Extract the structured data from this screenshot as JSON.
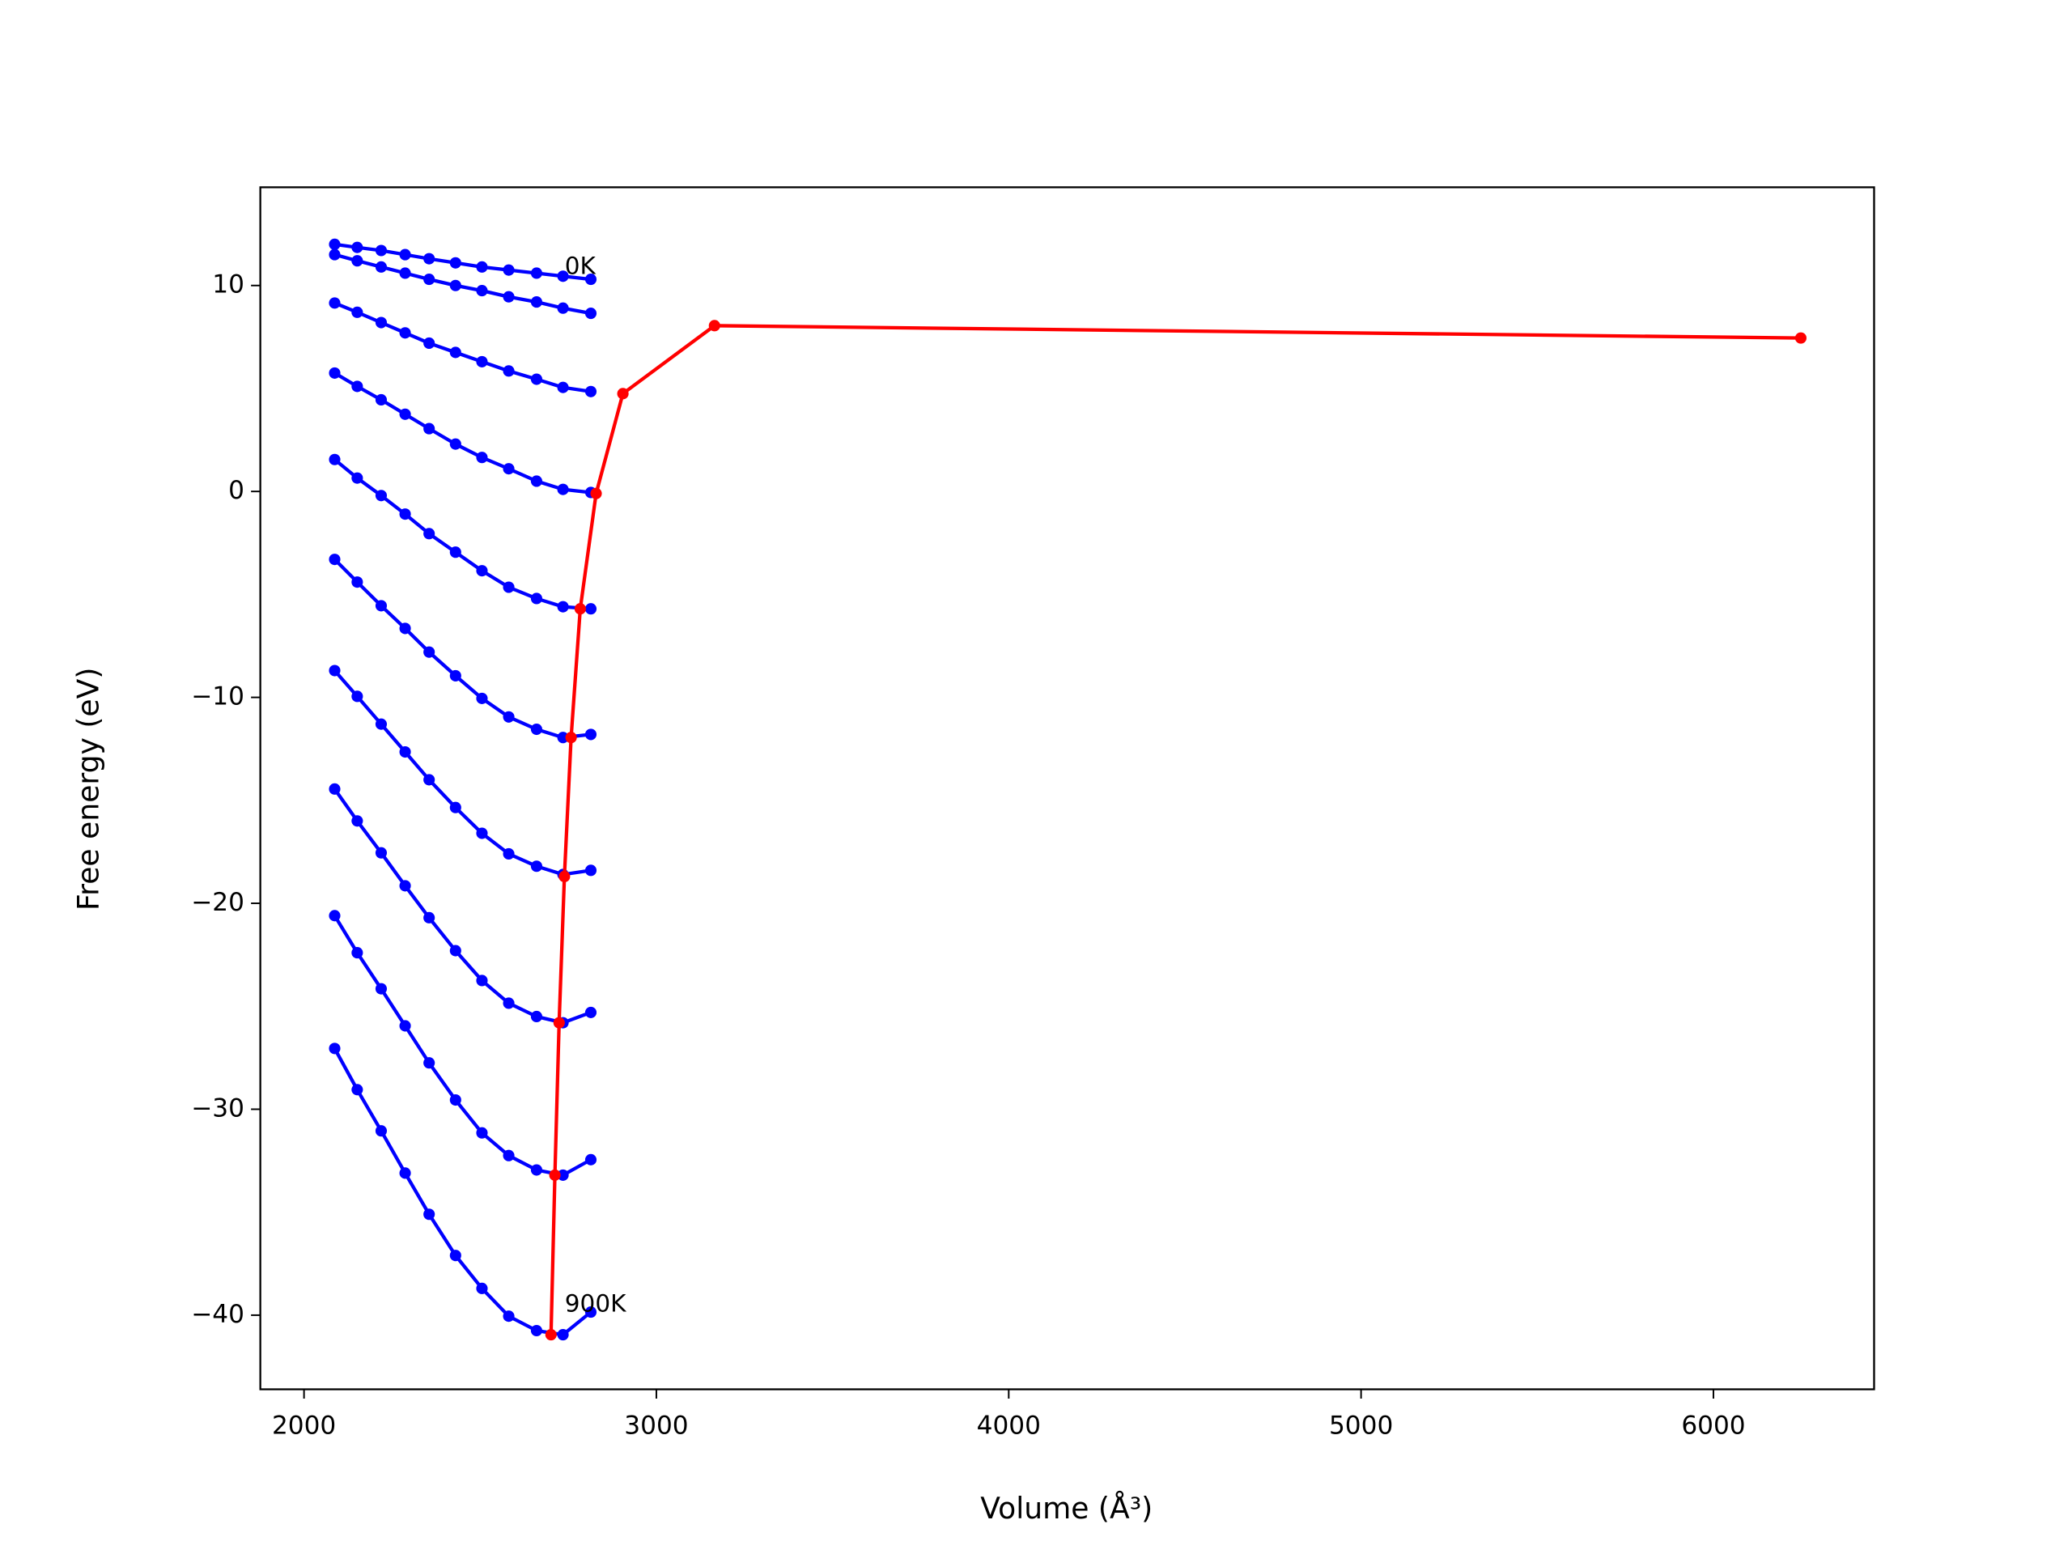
{
  "chart_data": {
    "type": "line",
    "xlabel": "Volume (Å³)",
    "ylabel": "Free energy (eV)",
    "xlim": [
      1876,
      6456
    ],
    "ylim": [
      -43.6,
      14.77
    ],
    "xticks": [
      2000,
      3000,
      4000,
      5000,
      6000
    ],
    "yticks": [
      {
        "value": -40,
        "label": "−40"
      },
      {
        "value": -30,
        "label": "−30"
      },
      {
        "value": -20,
        "label": "−20"
      },
      {
        "value": -10,
        "label": "−10"
      },
      0,
      10
    ],
    "annotations": [
      {
        "text": "0K",
        "x": 2740,
        "y": 10.9
      },
      {
        "text": "900K",
        "x": 2740,
        "y": -39.5
      }
    ],
    "series": [
      {
        "color": "#0000ff",
        "x": [
          2087,
          2151,
          2219,
          2287,
          2355,
          2430,
          2505,
          2581,
          2660,
          2735,
          2814
        ],
        "values": [
          12.0,
          11.85,
          11.7,
          11.5,
          11.3,
          11.1,
          10.9,
          10.75,
          10.6,
          10.45,
          10.3
        ]
      },
      {
        "color": "#0000ff",
        "x": [
          2087,
          2151,
          2219,
          2287,
          2355,
          2430,
          2505,
          2581,
          2660,
          2735,
          2814
        ],
        "values": [
          11.5,
          11.2,
          10.9,
          10.6,
          10.3,
          10.0,
          9.75,
          9.45,
          9.2,
          8.9,
          8.65
        ]
      },
      {
        "color": "#0000ff",
        "x": [
          2087,
          2151,
          2219,
          2287,
          2355,
          2430,
          2505,
          2581,
          2660,
          2735,
          2814
        ],
        "values": [
          9.15,
          8.7,
          8.2,
          7.7,
          7.2,
          6.75,
          6.3,
          5.85,
          5.45,
          5.05,
          4.85
        ]
      },
      {
        "color": "#0000ff",
        "x": [
          2087,
          2151,
          2219,
          2287,
          2355,
          2430,
          2505,
          2581,
          2660,
          2735,
          2814
        ],
        "values": [
          5.75,
          5.1,
          4.45,
          3.75,
          3.05,
          2.3,
          1.65,
          1.1,
          0.5,
          0.1,
          -0.05
        ]
      },
      {
        "color": "#0000ff",
        "x": [
          2087,
          2151,
          2219,
          2287,
          2355,
          2430,
          2505,
          2581,
          2660,
          2735,
          2814
        ],
        "values": [
          1.55,
          0.65,
          -0.2,
          -1.1,
          -2.05,
          -2.95,
          -3.85,
          -4.65,
          -5.2,
          -5.6,
          -5.7
        ]
      },
      {
        "color": "#0000ff",
        "x": [
          2087,
          2151,
          2219,
          2287,
          2355,
          2430,
          2505,
          2581,
          2660,
          2735,
          2814
        ],
        "values": [
          -3.3,
          -4.4,
          -5.55,
          -6.65,
          -7.8,
          -8.95,
          -10.05,
          -10.95,
          -11.55,
          -11.95,
          -11.8
        ]
      },
      {
        "color": "#0000ff",
        "x": [
          2087,
          2151,
          2219,
          2287,
          2355,
          2430,
          2505,
          2581,
          2660,
          2735,
          2814
        ],
        "values": [
          -8.7,
          -9.95,
          -11.3,
          -12.65,
          -14.0,
          -15.35,
          -16.6,
          -17.6,
          -18.2,
          -18.6,
          -18.4
        ]
      },
      {
        "color": "#0000ff",
        "x": [
          2087,
          2151,
          2219,
          2287,
          2355,
          2430,
          2505,
          2581,
          2660,
          2735,
          2814
        ],
        "values": [
          -14.45,
          -16.0,
          -17.55,
          -19.15,
          -20.7,
          -22.3,
          -23.75,
          -24.85,
          -25.5,
          -25.8,
          -25.3
        ]
      },
      {
        "color": "#0000ff",
        "x": [
          2087,
          2151,
          2219,
          2287,
          2355,
          2430,
          2505,
          2581,
          2660,
          2735,
          2814
        ],
        "values": [
          -20.6,
          -22.4,
          -24.15,
          -25.95,
          -27.75,
          -29.55,
          -31.15,
          -32.25,
          -32.95,
          -33.2,
          -32.45
        ]
      },
      {
        "color": "#0000ff",
        "x": [
          2087,
          2151,
          2219,
          2287,
          2355,
          2430,
          2505,
          2581,
          2660,
          2735,
          2814
        ],
        "values": [
          -27.05,
          -29.05,
          -31.05,
          -33.1,
          -35.1,
          -37.1,
          -38.7,
          -40.05,
          -40.75,
          -40.95,
          -39.85
        ]
      },
      {
        "color": "#ff0000",
        "x": [
          2701,
          2712,
          2724,
          2739,
          2758,
          2784,
          2829,
          2905,
          3165,
          6248
        ],
        "values": [
          -40.95,
          -33.2,
          -25.8,
          -18.7,
          -11.95,
          -5.7,
          -0.1,
          4.75,
          8.05,
          7.45
        ]
      }
    ]
  }
}
